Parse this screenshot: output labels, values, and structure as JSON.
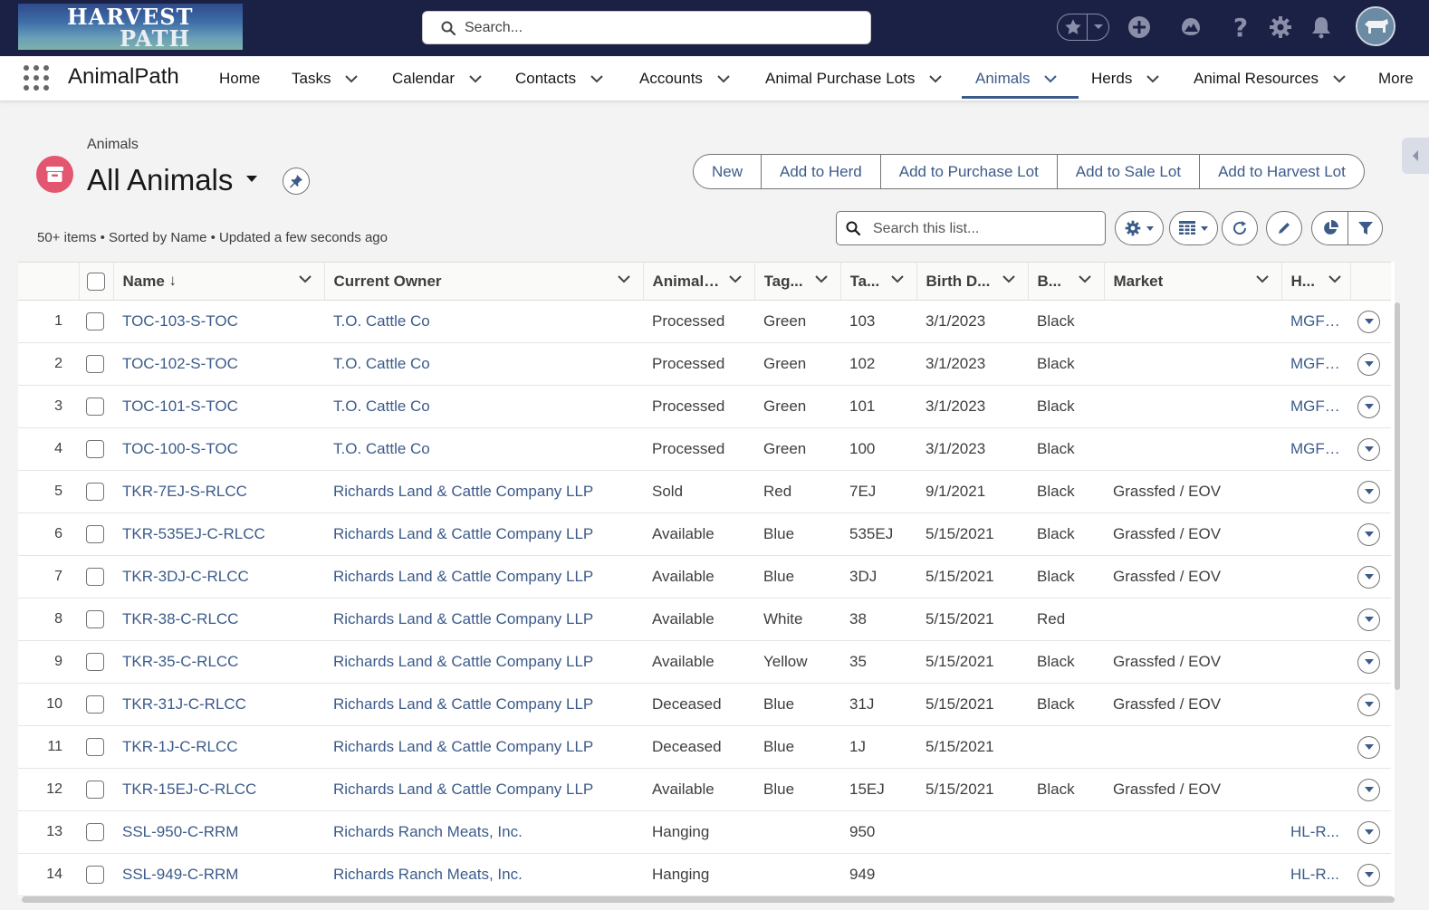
{
  "brand": {
    "logo_line1": "HARVEST",
    "logo_line2": "PATH",
    "app_name": "AnimalPath"
  },
  "global_search": {
    "placeholder": "Search..."
  },
  "header_icons": [
    "favorites-star-icon",
    "add-icon",
    "trailhead-icon",
    "help-icon",
    "setup-gear-icon",
    "notifications-bell-icon",
    "user-avatar"
  ],
  "nav": {
    "items": [
      {
        "label": "Home",
        "has_menu": false
      },
      {
        "label": "Tasks",
        "has_menu": true
      },
      {
        "label": "Calendar",
        "has_menu": true
      },
      {
        "label": "Contacts",
        "has_menu": true
      },
      {
        "label": "Accounts",
        "has_menu": true
      },
      {
        "label": "Animal Purchase Lots",
        "has_menu": true
      },
      {
        "label": "Animals",
        "has_menu": true,
        "active": true
      },
      {
        "label": "Herds",
        "has_menu": true
      },
      {
        "label": "Animal Resources",
        "has_menu": true
      },
      {
        "label": "More",
        "has_menu": false
      }
    ]
  },
  "list_header": {
    "breadcrumb": "Animals",
    "title": "All Animals",
    "meta": "50+ items • Sorted by Name • Updated a few seconds ago",
    "search_placeholder": "Search this list...",
    "actions": [
      "New",
      "Add to Herd",
      "Add to Purchase Lot",
      "Add to Sale Lot",
      "Add to Harvest Lot"
    ]
  },
  "table": {
    "columns": [
      "Name",
      "Current Owner",
      "Animal ...",
      "Tag...",
      "Ta...",
      "Birth D...",
      "B...",
      "Market",
      "H..."
    ],
    "sort_indicator": "↓",
    "rows": [
      {
        "n": "1",
        "name": "TOC-103-S-TOC",
        "owner": "T.O. Cattle Co",
        "status": "Processed",
        "tag_color": "Green",
        "tag": "103",
        "birth": "3/1/2023",
        "breed": "Black",
        "market": "",
        "h": "MGF ..."
      },
      {
        "n": "2",
        "name": "TOC-102-S-TOC",
        "owner": "T.O. Cattle Co",
        "status": "Processed",
        "tag_color": "Green",
        "tag": "102",
        "birth": "3/1/2023",
        "breed": "Black",
        "market": "",
        "h": "MGF ..."
      },
      {
        "n": "3",
        "name": "TOC-101-S-TOC",
        "owner": "T.O. Cattle Co",
        "status": "Processed",
        "tag_color": "Green",
        "tag": "101",
        "birth": "3/1/2023",
        "breed": "Black",
        "market": "",
        "h": "MGF ..."
      },
      {
        "n": "4",
        "name": "TOC-100-S-TOC",
        "owner": "T.O. Cattle Co",
        "status": "Processed",
        "tag_color": "Green",
        "tag": "100",
        "birth": "3/1/2023",
        "breed": "Black",
        "market": "",
        "h": "MGF ..."
      },
      {
        "n": "5",
        "name": "TKR-7EJ-S-RLCC",
        "owner": "Richards Land & Cattle Company LLP",
        "status": "Sold",
        "tag_color": "Red",
        "tag": "7EJ",
        "birth": "9/1/2021",
        "breed": "Black",
        "market": "Grassfed / EOV",
        "h": ""
      },
      {
        "n": "6",
        "name": "TKR-535EJ-C-RLCC",
        "owner": "Richards Land & Cattle Company LLP",
        "status": "Available",
        "tag_color": "Blue",
        "tag": "535EJ",
        "birth": "5/15/2021",
        "breed": "Black",
        "market": "Grassfed / EOV",
        "h": ""
      },
      {
        "n": "7",
        "name": "TKR-3DJ-C-RLCC",
        "owner": "Richards Land & Cattle Company LLP",
        "status": "Available",
        "tag_color": "Blue",
        "tag": "3DJ",
        "birth": "5/15/2021",
        "breed": "Black",
        "market": "Grassfed / EOV",
        "h": ""
      },
      {
        "n": "8",
        "name": "TKR-38-C-RLCC",
        "owner": "Richards Land & Cattle Company LLP",
        "status": "Available",
        "tag_color": "White",
        "tag": "38",
        "birth": "5/15/2021",
        "breed": "Red",
        "market": "",
        "h": ""
      },
      {
        "n": "9",
        "name": "TKR-35-C-RLCC",
        "owner": "Richards Land & Cattle Company LLP",
        "status": "Available",
        "tag_color": "Yellow",
        "tag": "35",
        "birth": "5/15/2021",
        "breed": "Black",
        "market": "Grassfed / EOV",
        "h": ""
      },
      {
        "n": "10",
        "name": "TKR-31J-C-RLCC",
        "owner": "Richards Land & Cattle Company LLP",
        "status": "Deceased",
        "tag_color": "Blue",
        "tag": "31J",
        "birth": "5/15/2021",
        "breed": "Black",
        "market": "Grassfed / EOV",
        "h": ""
      },
      {
        "n": "11",
        "name": "TKR-1J-C-RLCC",
        "owner": "Richards Land & Cattle Company LLP",
        "status": "Deceased",
        "tag_color": "Blue",
        "tag": "1J",
        "birth": "5/15/2021",
        "breed": "",
        "market": "",
        "h": ""
      },
      {
        "n": "12",
        "name": "TKR-15EJ-C-RLCC",
        "owner": "Richards Land & Cattle Company LLP",
        "status": "Available",
        "tag_color": "Blue",
        "tag": "15EJ",
        "birth": "5/15/2021",
        "breed": "Black",
        "market": "Grassfed / EOV",
        "h": ""
      },
      {
        "n": "13",
        "name": "SSL-950-C-RRM",
        "owner": "Richards Ranch Meats, Inc.",
        "status": "Hanging",
        "tag_color": "",
        "tag": "950",
        "birth": "",
        "breed": "",
        "market": "",
        "h": "HL-R..."
      },
      {
        "n": "14",
        "name": "SSL-949-C-RRM",
        "owner": "Richards Ranch Meats, Inc.",
        "status": "Hanging",
        "tag_color": "",
        "tag": "949",
        "birth": "",
        "breed": "",
        "market": "",
        "h": "HL-R..."
      }
    ]
  },
  "colors": {
    "header_bg": "#1b2045",
    "link": "#3c5b8a",
    "object_icon": "#e3566f"
  }
}
